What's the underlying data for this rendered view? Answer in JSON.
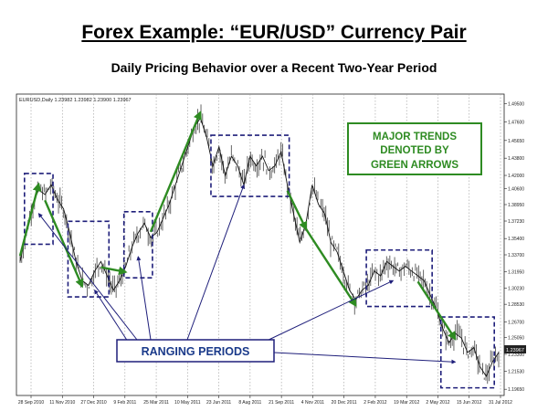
{
  "slide": {
    "title": "Forex Example:  “EUR/USD” Currency Pair",
    "subtitle": "Daily Pricing Behavior over a Recent Two-Year Period"
  },
  "chart_data": {
    "type": "line",
    "header_text": "EURUSD,Daily  1.23982 1.23982 1.23900 1.23967",
    "current_price_label": "1.23967",
    "y_ticks": [
      "1.49500",
      "1.47600",
      "1.45650",
      "1.43800",
      "1.42000",
      "1.40600",
      "1.38950",
      "1.37230",
      "1.35400",
      "1.33700",
      "1.31950",
      "1.30230",
      "1.28530",
      "1.26700",
      "1.25050",
      "1.23300",
      "1.21530",
      "1.19650"
    ],
    "x_ticks": [
      "28 Sep 2010",
      "11 Nov 2010",
      "27 Dec 2010",
      "9 Feb 2011",
      "25 Mar 2011",
      "10 May 2011",
      "23 Jun 2011",
      "8 Aug 2011",
      "21 Sep 2011",
      "4 Nov 2011",
      "20 Dec 2011",
      "2 Feb 2012",
      "19 Mar 2012",
      "2 May 2012",
      "15 Jun 2012",
      "31 Jul 2012"
    ],
    "ylim": [
      1.19,
      1.505
    ],
    "grid": true,
    "series": [
      {
        "values": [
          1.33,
          1.36,
          1.39,
          1.405,
          1.4,
          1.41,
          1.395,
          1.385,
          1.36,
          1.33,
          1.31,
          1.305,
          1.32,
          1.33,
          1.315,
          1.3,
          1.31,
          1.325,
          1.345,
          1.36,
          1.37,
          1.355,
          1.36,
          1.375,
          1.39,
          1.41,
          1.43,
          1.45,
          1.47,
          1.48,
          1.46,
          1.43,
          1.45,
          1.42,
          1.44,
          1.43,
          1.41,
          1.44,
          1.43,
          1.44,
          1.425,
          1.43,
          1.445,
          1.41,
          1.38,
          1.35,
          1.37,
          1.41,
          1.39,
          1.38,
          1.35,
          1.34,
          1.32,
          1.3,
          1.29,
          1.3,
          1.305,
          1.32,
          1.315,
          1.33,
          1.325,
          1.32,
          1.325,
          1.32,
          1.315,
          1.31,
          1.295,
          1.28,
          1.26,
          1.245,
          1.255,
          1.25,
          1.235,
          1.24,
          1.22,
          1.21,
          1.225,
          1.235
        ]
      }
    ],
    "annotations": {
      "trends_box": [
        "MAJOR TRENDS",
        "DENOTED BY",
        "GREEN ARROWS"
      ],
      "ranging_label": "RANGING PERIODS"
    },
    "colors": {
      "price": "#555555",
      "trend_arrow": "#2e8b22",
      "range_box": "#1e1e7a",
      "callout_text": "#1a3a8a",
      "callout_box_bg": "#ffffff",
      "trends_text": "#2e8b22"
    }
  }
}
